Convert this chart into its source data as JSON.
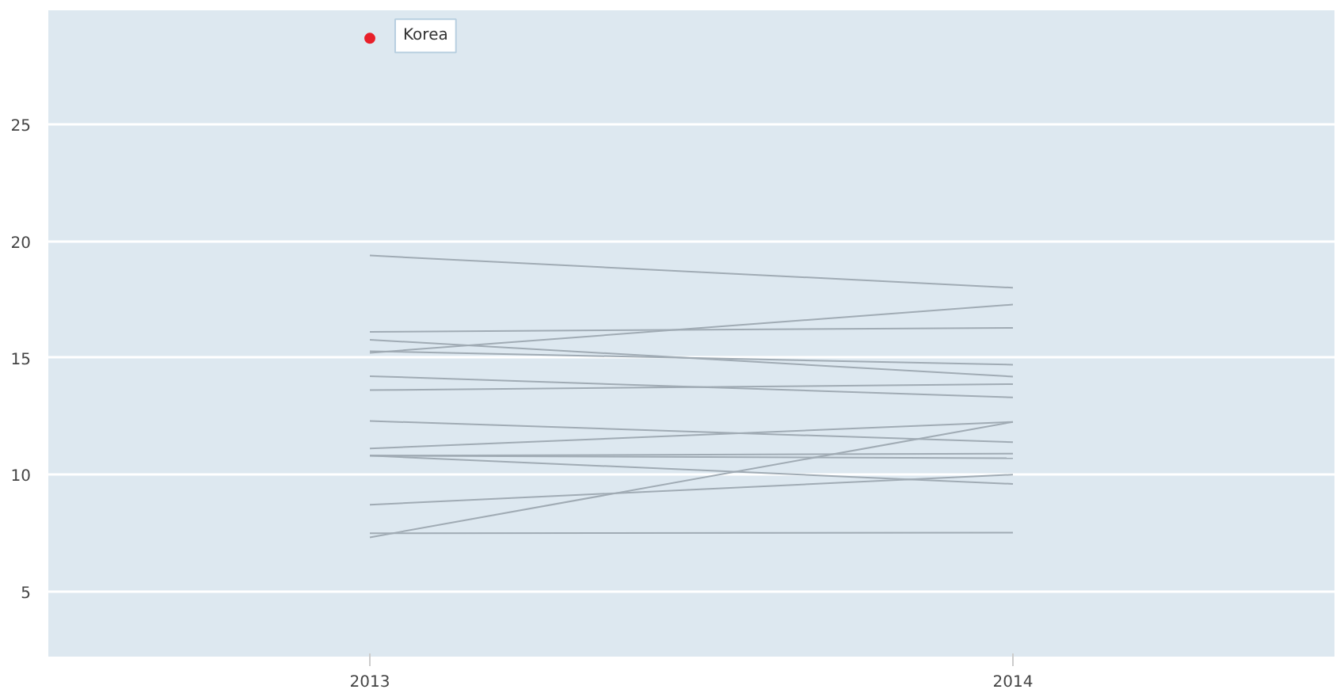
{
  "chart_data": {
    "type": "line",
    "x": [
      2013,
      2014
    ],
    "xlim": [
      2012.5,
      2014.5
    ],
    "ylim": [
      2.2,
      29.9
    ],
    "xticks": [
      {
        "value": 2013,
        "label": "2013"
      },
      {
        "value": 2014,
        "label": "2014"
      }
    ],
    "yticks": [
      5,
      10,
      15,
      20,
      25
    ],
    "grid": "y",
    "series": [
      {
        "color": "#a0abb4",
        "values": [
          19.39,
          18.01
        ]
      },
      {
        "color": "#a0abb4",
        "values": [
          16.12,
          16.29
        ]
      },
      {
        "color": "#a0abb4",
        "values": [
          15.78,
          14.2
        ]
      },
      {
        "color": "#a0abb4",
        "values": [
          15.22,
          17.29
        ]
      },
      {
        "color": "#a0abb4",
        "values": [
          15.29,
          14.71
        ]
      },
      {
        "color": "#a0abb4",
        "values": [
          14.22,
          13.31
        ]
      },
      {
        "color": "#a0abb4",
        "values": [
          13.62,
          13.88
        ]
      },
      {
        "color": "#a0abb4",
        "values": [
          12.3,
          11.39
        ]
      },
      {
        "color": "#a0abb4",
        "values": [
          11.12,
          12.26
        ]
      },
      {
        "color": "#a0abb4",
        "values": [
          10.81,
          10.9
        ]
      },
      {
        "color": "#a0abb4",
        "values": [
          10.81,
          10.7
        ]
      },
      {
        "color": "#a0abb4",
        "values": [
          10.81,
          9.6
        ]
      },
      {
        "color": "#a0abb4",
        "values": [
          8.71,
          10.0
        ]
      },
      {
        "color": "#a0abb4",
        "values": [
          7.31,
          12.26
        ]
      },
      {
        "color": "#a0abb4",
        "values": [
          7.49,
          7.51
        ]
      },
      {
        "type": "scatter",
        "marker": "circle",
        "name": "Korea",
        "color": "#e8202a",
        "x": [
          2013
        ],
        "values": [
          28.7
        ]
      }
    ]
  }
}
